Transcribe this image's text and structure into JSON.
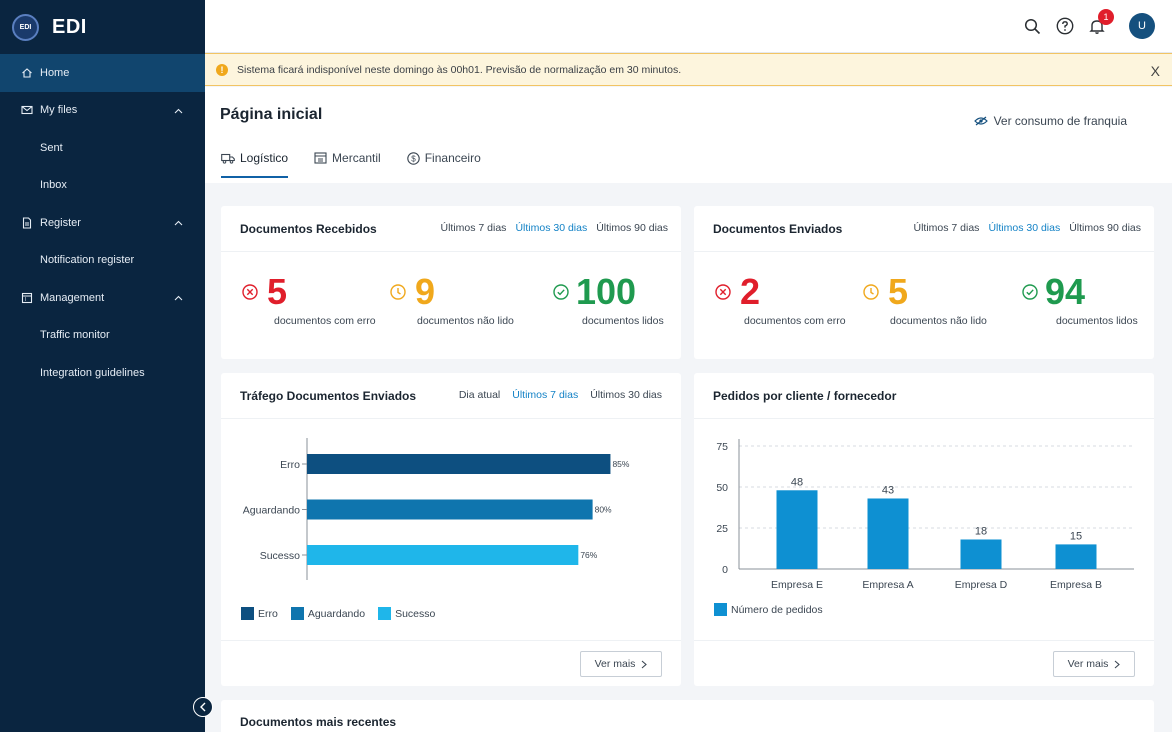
{
  "sidebar": {
    "logo_text": "EDI",
    "brand": "EDI",
    "items": [
      {
        "label": "Home",
        "icon": "home-icon",
        "active": true
      },
      {
        "label": "My files",
        "icon": "mail-icon",
        "children": [
          {
            "label": "Sent"
          },
          {
            "label": "Inbox"
          }
        ]
      },
      {
        "label": "Register",
        "icon": "document-icon",
        "children": [
          {
            "label": "Notification register"
          }
        ]
      },
      {
        "label": "Management",
        "icon": "calendar-icon",
        "children": [
          {
            "label": "Traffic monitor"
          },
          {
            "label": "Integration guidelines"
          }
        ]
      }
    ]
  },
  "topbar": {
    "notification_count": "1",
    "avatar_initial": "U",
    "icons": [
      "search-icon",
      "help-icon",
      "bell-icon"
    ]
  },
  "alert": {
    "message": "Sistema ficará indisponível neste domingo às 00h01. Previsão de normalização em 30 minutos.",
    "icon": "!",
    "close": "X"
  },
  "page": {
    "title": "Página inicial",
    "franquia_link": "Ver consumo de franquia",
    "tabs": [
      {
        "label": "Logístico",
        "icon": "truck-icon",
        "active": true
      },
      {
        "label": "Mercantil",
        "icon": "store-icon"
      },
      {
        "label": "Financeiro",
        "icon": "dollar-icon"
      }
    ]
  },
  "received": {
    "title": "Documentos Recebidos",
    "filters": [
      "Últimos 7 dias",
      "Últimos 30 dias",
      "Últimos 90 dias"
    ],
    "selected_filter": 1,
    "kpis": [
      {
        "value": "5",
        "label": "documentos com erro",
        "status": "error"
      },
      {
        "value": "9",
        "label": "documentos não lido",
        "status": "pending"
      },
      {
        "value": "100",
        "label": "documentos lidos",
        "status": "success"
      }
    ]
  },
  "sent": {
    "title": "Documentos Enviados",
    "filters": [
      "Últimos 7 dias",
      "Últimos 30 dias",
      "Últimos 90 dias"
    ],
    "selected_filter": 1,
    "kpis": [
      {
        "value": "2",
        "label": "documentos com erro",
        "status": "error"
      },
      {
        "value": "5",
        "label": "documentos não lido",
        "status": "pending"
      },
      {
        "value": "94",
        "label": "documentos lidos",
        "status": "success"
      }
    ]
  },
  "traffic": {
    "title": "Tráfego Documentos Enviados",
    "filters": [
      "Dia atual",
      "Últimos 7 dias",
      "Últimos 30 dias"
    ],
    "selected_filter": 1,
    "more": "Ver mais"
  },
  "orders": {
    "title": "Pedidos por cliente / fornecedor",
    "more": "Ver mais"
  },
  "recent": {
    "title": "Documentos mais recentes"
  },
  "colors": {
    "sidebar": "#0a2540",
    "active": "#11456e",
    "accent": "#1382c6",
    "error": "#e01e2b",
    "pending": "#f0a81c",
    "success": "#1f9a4f"
  },
  "chart_data": [
    {
      "type": "bar",
      "orientation": "horizontal",
      "categories": [
        "Erro",
        "Aguardando",
        "Sucesso"
      ],
      "values": [
        85,
        80,
        76
      ],
      "value_labels": [
        "85%",
        "80%",
        "76%"
      ],
      "colors": [
        "#0d4f80",
        "#0f75ae",
        "#1fb6ea"
      ],
      "legend": [
        "Erro",
        "Aguardando",
        "Sucesso"
      ],
      "xlim": [
        0,
        100
      ],
      "legend_position": "bottom-left",
      "grid": false
    },
    {
      "type": "bar",
      "categories": [
        "Empresa E",
        "Empresa A",
        "Empresa D",
        "Empresa B"
      ],
      "series": [
        {
          "name": "Número de pedidos",
          "values": [
            48,
            43,
            18,
            15
          ],
          "color": "#0e90d2"
        }
      ],
      "yticks": [
        "75",
        "50",
        "25",
        "0"
      ],
      "ylim": [
        0,
        75
      ],
      "grid": true,
      "legend_position": "bottom-left"
    }
  ]
}
